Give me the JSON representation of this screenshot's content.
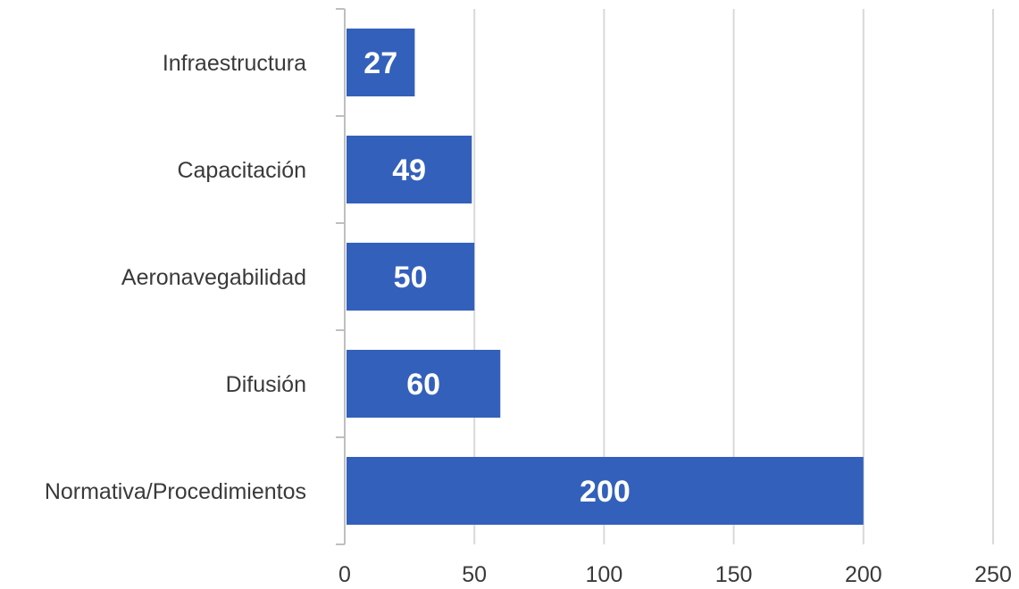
{
  "chart_data": {
    "type": "bar",
    "orientation": "horizontal",
    "categories": [
      "Infraestructura",
      "Capacitación",
      "Aeronavegabilidad",
      "Difusión",
      "Normativa/Procedimientos"
    ],
    "values": [
      27,
      49,
      50,
      60,
      200
    ],
    "data_labels": [
      "27",
      "49",
      "50",
      "60",
      "200"
    ],
    "xlim": [
      0,
      250
    ],
    "x_ticks": [
      0,
      50,
      100,
      150,
      200,
      250
    ],
    "x_tick_labels": [
      "0",
      "50",
      "100",
      "150",
      "200",
      "250"
    ],
    "grid": "vertical",
    "legend": "none",
    "bar_color": "#3360bb"
  }
}
